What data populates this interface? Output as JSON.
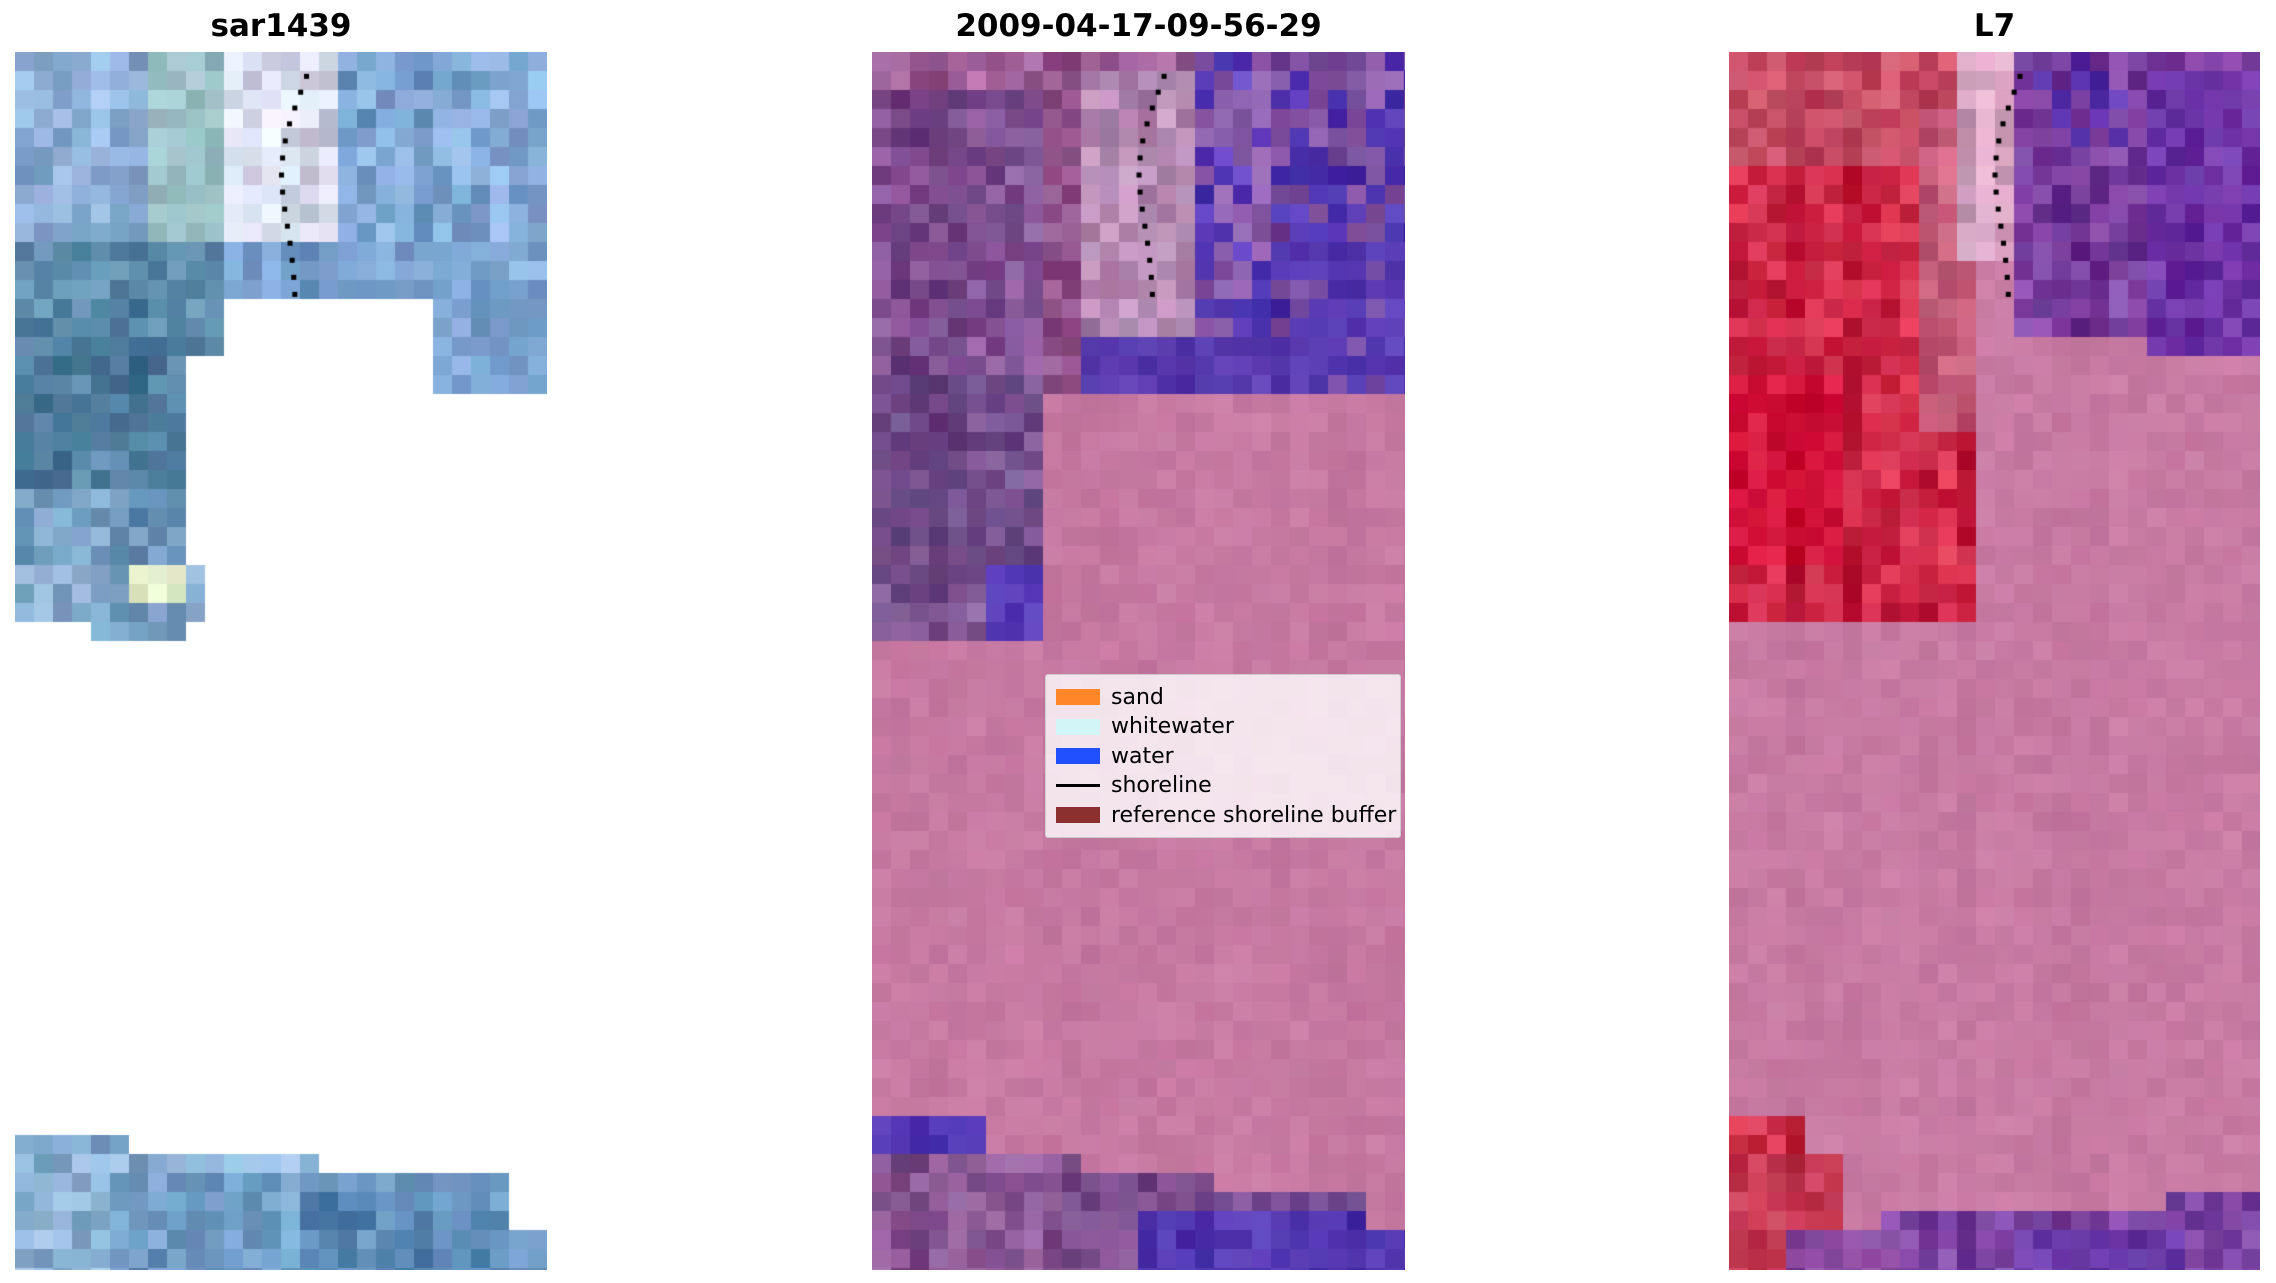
{
  "figure": {
    "background": "#ffffff"
  },
  "panels": [
    {
      "title": "sar1439"
    },
    {
      "title": "2009-04-17-09-56-29"
    },
    {
      "title": "L7"
    }
  ],
  "legend": {
    "items": [
      {
        "label": "sand",
        "color": "#ff8728",
        "type": "patch"
      },
      {
        "label": "whitewater",
        "color": "#d2f6f8",
        "type": "patch"
      },
      {
        "label": "water",
        "color": "#2050ff",
        "type": "patch"
      },
      {
        "label": "shoreline",
        "color": "#000000",
        "type": "line"
      },
      {
        "label": "reference shoreline buffer",
        "color": "#8b2f2f",
        "type": "patch"
      }
    ]
  },
  "palette": {
    "no_data": "#ffffff",
    "buffer_pink": "#c77aa2",
    "water_indigo": "#5338b4",
    "land_purple": "#7e4f90",
    "magenta_top": "#9a5c94",
    "sar_blue": "#8fafd6",
    "sar_teal": "#5d8cab",
    "l7_red": "#cb2544",
    "l7_purple": "#7a3f9e",
    "shoreline_dots": "#000000"
  },
  "chart_data": {
    "type": "image",
    "layout": "1x3 image panels, matplotlib style, no axes",
    "panels": [
      {
        "title": "sar1439",
        "content": "SAR backscatter image in blue/teal tones, pixelated, partial coverage with large white no-data gaps in middle and bottom strip of coverage at base; dotted black shoreline near top center"
      },
      {
        "title": "2009-04-17-09-56-29",
        "content": "classified optical image: magenta/purple land at top and bottom, indigo water patches, large pink reference-shoreline-buffer area in middle; legend box overlaid; dotted black shoreline near top center"
      },
      {
        "title": "L7",
        "content": "Landsat-7 false-color composite: red/crimson upper-left, purple upper-right and bottom, large pink reference-shoreline-buffer area in middle; dotted black shoreline near top center"
      }
    ],
    "legend": {
      "position": "center of middle panel",
      "entries": [
        {
          "label": "sand",
          "color": "#ff8728"
        },
        {
          "label": "whitewater",
          "color": "#d2f6f8"
        },
        {
          "label": "water",
          "color": "#2050ff"
        },
        {
          "label": "shoreline",
          "color": "#000000"
        },
        {
          "label": "reference shoreline buffer",
          "color": "#8b2f2f"
        }
      ]
    }
  }
}
